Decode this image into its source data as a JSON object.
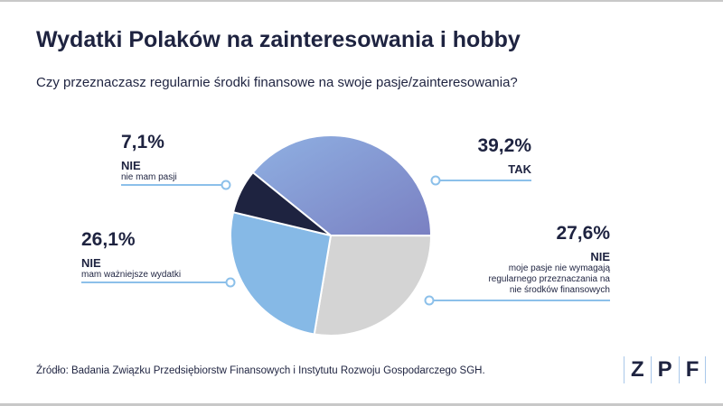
{
  "title": "Wydatki Polaków na zainteresowania i hobby",
  "subtitle": "Czy przeznaczasz regularnie środki finansowe na swoje pasje/zainteresowania?",
  "source": "Źródło: Badania Związku Przedsiębiorstw Finansowych i Instytutu Rozwoju Gospodarczego SGH.",
  "logo": [
    "Z",
    "P",
    "F"
  ],
  "colors": {
    "tak_start": "#8fb0e2",
    "tak_end": "#7a80c2",
    "gray": "#d4d4d4",
    "light_blue": "#86b9e6",
    "navy": "#1e2340",
    "leader": "#8cc0ea"
  },
  "chart_data": {
    "type": "pie",
    "start_angle_deg": 309,
    "direction": "clockwise",
    "slices": [
      {
        "pct_label": "39,2%",
        "value": 39.2,
        "category": "TAK",
        "desc": [],
        "color": "gradient"
      },
      {
        "pct_label": "27,6%",
        "value": 27.6,
        "category": "NIE",
        "desc": [
          "moje pasje nie wymagają",
          "regularnego przeznaczania na",
          "nie środków finansowych"
        ],
        "color": "#d4d4d4"
      },
      {
        "pct_label": "26,1%",
        "value": 26.1,
        "category": "NIE",
        "desc": [
          "mam ważniejsze wydatki"
        ],
        "color": "#86b9e6"
      },
      {
        "pct_label": "7,1%",
        "value": 7.1,
        "category": "NIE",
        "desc": [
          "nie mam pasji"
        ],
        "color": "#1e2340"
      }
    ]
  }
}
